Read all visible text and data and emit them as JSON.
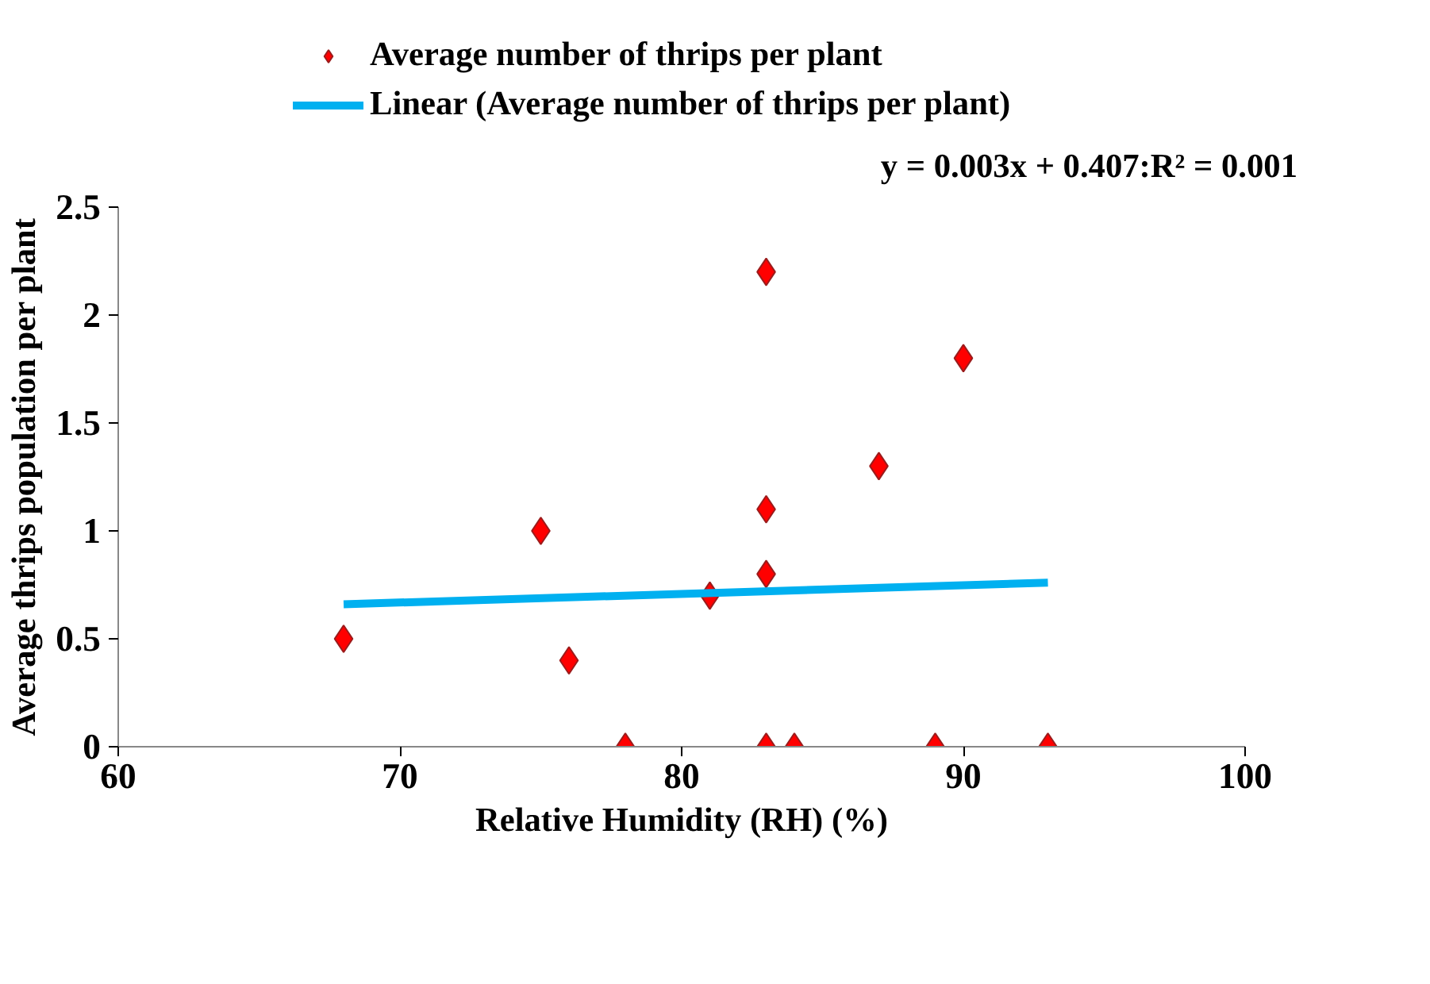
{
  "chart_data": {
    "type": "scatter",
    "xlabel": "Relative Humidity (RH) (%)",
    "ylabel": "Average thrips population per plant",
    "annotations": [
      "y = 0.003x + 0.407:R² = 0.001"
    ],
    "x": [
      68,
      75,
      76,
      78,
      81,
      83,
      83,
      83,
      83,
      84,
      87,
      89,
      90,
      93
    ],
    "series": [
      {
        "name": "Average number of thrips per plant",
        "color": "#ff0000",
        "marker": "diamond",
        "values": [
          0.5,
          1.0,
          0.4,
          0,
          0.7,
          2.2,
          1.1,
          0.8,
          0,
          0,
          1.3,
          0,
          1.8,
          0
        ]
      },
      {
        "name": "Linear (Average number of thrips per plant)",
        "type": "line",
        "color": "#00b0f0",
        "x": [
          68,
          93
        ],
        "values": [
          0.66,
          0.76
        ]
      }
    ],
    "xlim": [
      60,
      100
    ],
    "ylim": [
      0,
      2.5
    ],
    "xticks": [
      60,
      70,
      80,
      90,
      100
    ],
    "yticks": [
      0,
      0.5,
      1,
      1.5,
      2,
      2.5
    ],
    "grid": false,
    "legend": "top left"
  }
}
